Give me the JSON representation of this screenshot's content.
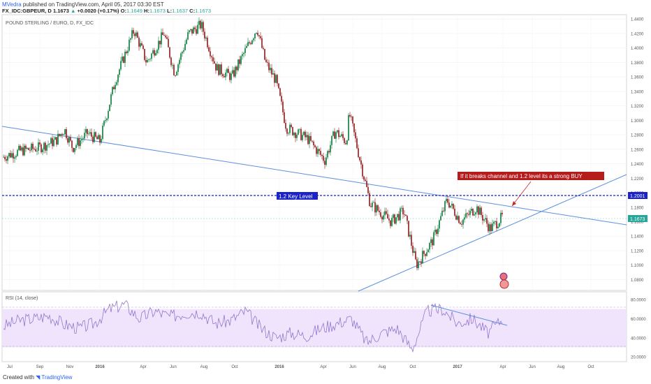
{
  "header": {
    "author": "MVedra",
    "published": "published on TradingView.com, April 05, 2017 03:30 EST",
    "symbol": "FX_IDC:GBPEUR, D",
    "last": "1.1673",
    "change_arrow": "▲",
    "change": "+0.0020 (+0.17%)",
    "o_label": "O:",
    "o": "1.1649",
    "h_label": "H:",
    "h": "1.1673",
    "l_label": "L:",
    "l": "1.1637",
    "c_label": "C:",
    "c": "1.1673"
  },
  "footer": {
    "created_with": "Created with",
    "brand": "TradingView"
  },
  "chart_data": [
    {
      "type": "candlestick",
      "title": "POUND STERLING / EURO, D, FX_IDC",
      "y_ticks": [
        "1.4400",
        "1.4200",
        "1.4000",
        "1.3800",
        "1.3600",
        "1.3400",
        "1.3200",
        "1.3000",
        "1.2800",
        "1.2600",
        "1.2400",
        "1.2200",
        "1.2000",
        "1.1800",
        "1.1600",
        "1.1400",
        "1.1200",
        "1.1000",
        "1.0800"
      ],
      "ylim": [
        1.065,
        1.446
      ],
      "x_ticks": [
        "Jul",
        "Sep",
        "Nov",
        "2016",
        "Apr",
        "Jun",
        "Aug",
        "Oct",
        "2016",
        "Apr",
        "Jun",
        "Aug",
        "Oct",
        "2017",
        "Apr",
        "Jun",
        "Aug",
        "Oct"
      ],
      "key_level": {
        "value": 1.2001,
        "label": "1.2 Key Level",
        "price_label": "1.2001"
      },
      "last_price": {
        "value": 1.1673,
        "label": "1.1673"
      },
      "annotation": "If it breaks channel and 1.2 level its a strong BUY",
      "colors": {
        "up": "#0a7a38",
        "down": "#8b1a1a",
        "trendline": "#5b8fe0",
        "key_level": "#1a22c8",
        "annotation_bg": "#b71c1c",
        "last_price_bg": "#26a69a"
      },
      "path": [
        {
          "x": "2015-07-01",
          "y": 1.249
        },
        {
          "x": "2015-08-01",
          "y": 1.258
        },
        {
          "x": "2015-09-01",
          "y": 1.262
        },
        {
          "x": "2015-10-01",
          "y": 1.272
        },
        {
          "x": "2015-10-25",
          "y": 1.288
        },
        {
          "x": "2015-11-15",
          "y": 1.262
        },
        {
          "x": "2015-12-10",
          "y": 1.282
        },
        {
          "x": "2015-12-31",
          "y": 1.271
        },
        {
          "x": "2016-02-01",
          "y": 1.355
        },
        {
          "x": "2016-03-01",
          "y": 1.425
        },
        {
          "x": "2016-04-01",
          "y": 1.38
        },
        {
          "x": "2016-05-01",
          "y": 1.42
        },
        {
          "x": "2016-06-01",
          "y": 1.365
        },
        {
          "x": "2016-07-01",
          "y": 1.42
        },
        {
          "x": "2016-08-01",
          "y": 1.432
        },
        {
          "x": "2016-09-01",
          "y": 1.372
        },
        {
          "x": "2016-10-01",
          "y": 1.36
        },
        {
          "x": "2016-11-01",
          "y": 1.428
        },
        {
          "x": "2016-12-01",
          "y": 1.38
        },
        {
          "x": "2016-12-31",
          "y": 1.355
        },
        {
          "x": "2016-01-31",
          "y": 1.29
        },
        {
          "x": "2016-03-10",
          "y": 1.275
        },
        {
          "x": "2016-04-10",
          "y": 1.245
        },
        {
          "x": "2016-05-10",
          "y": 1.285
        },
        {
          "x": "2016-06-01",
          "y": 1.27
        },
        {
          "x": "2016-06-23",
          "y": 1.31
        },
        {
          "x": "2016-06-28",
          "y": 1.222
        },
        {
          "x": "2016-07-15",
          "y": 1.185
        },
        {
          "x": "2016-08-10",
          "y": 1.16
        },
        {
          "x": "2016-09-05",
          "y": 1.175
        },
        {
          "x": "2016-10-07",
          "y": 1.1
        },
        {
          "x": "2016-11-15",
          "y": 1.135
        },
        {
          "x": "2016-12-05",
          "y": 1.19
        },
        {
          "x": "2017-01-05",
          "y": 1.16
        },
        {
          "x": "2017-02-01",
          "y": 1.18
        },
        {
          "x": "2017-03-01",
          "y": 1.15
        },
        {
          "x": "2017-04-05",
          "y": 1.1673
        }
      ]
    },
    {
      "type": "line",
      "title": "RSI (14, close)",
      "y_ticks": [
        "80.0000",
        "60.0000",
        "40.0000",
        "20.0000"
      ],
      "ylim": [
        15,
        88
      ],
      "band": [
        30,
        70
      ],
      "series": [
        {
          "x": [
            "2015-07",
            "2015-08",
            "2015-09",
            "2015-10",
            "2015-11",
            "2015-12",
            "2016-01",
            "2016-02",
            "2016-03",
            "2016-04",
            "2016-05",
            "2016-06",
            "2016-07",
            "2016-08",
            "2016-09",
            "2016-10",
            "2016-11",
            "2016-12",
            "2016-01b",
            "2016-02b",
            "2016-03b",
            "2016-04b",
            "2016-05b",
            "2016-06b",
            "2016-07b",
            "2016-08b",
            "2016-09b",
            "2016-10b",
            "2016-11b",
            "2016-12b",
            "2017-01",
            "2017-02",
            "2017-03",
            "2017-04"
          ],
          "values": [
            52,
            58,
            60,
            63,
            54,
            50,
            55,
            70,
            75,
            60,
            68,
            62,
            66,
            67,
            55,
            58,
            68,
            50,
            40,
            45,
            42,
            50,
            55,
            60,
            35,
            45,
            50,
            28,
            68,
            70,
            55,
            60,
            45,
            60
          ]
        }
      ]
    }
  ]
}
